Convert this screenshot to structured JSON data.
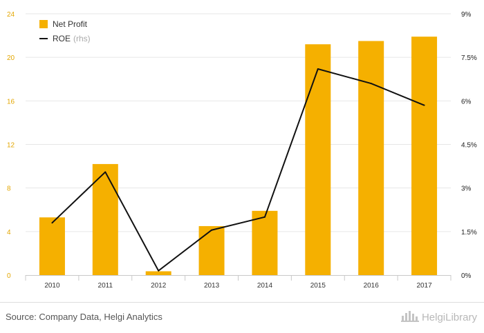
{
  "chart_data": {
    "type": "bar+line",
    "categories": [
      "2010",
      "2011",
      "2012",
      "2013",
      "2014",
      "2015",
      "2016",
      "2017"
    ],
    "series": [
      {
        "name": "Net Profit",
        "type": "bar",
        "axis": "left",
        "color": "#f5b000",
        "values": [
          5.3,
          10.2,
          0.35,
          4.5,
          5.9,
          21.2,
          21.5,
          21.9
        ]
      },
      {
        "name": "ROE",
        "name_suffix": "(rhs)",
        "type": "line",
        "axis": "right",
        "color": "#111111",
        "values": [
          1.8,
          3.55,
          0.15,
          1.55,
          2.0,
          7.1,
          6.6,
          5.85
        ]
      }
    ],
    "left_axis": {
      "ylim": [
        0,
        24
      ],
      "ticks": [
        "0",
        "4",
        "8",
        "12",
        "16",
        "20",
        "24"
      ]
    },
    "right_axis": {
      "ylim": [
        0,
        9
      ],
      "ticks": [
        "0%",
        "1.5%",
        "3%",
        "4.5%",
        "6%",
        "7.5%",
        "9%"
      ]
    },
    "grid": true,
    "legend_position": "top-left"
  },
  "footer": {
    "source": "Source: Company Data, Helgi Analytics",
    "brand": "HelgiLibrary",
    "brand_icon": "helgi-logo-icon"
  }
}
